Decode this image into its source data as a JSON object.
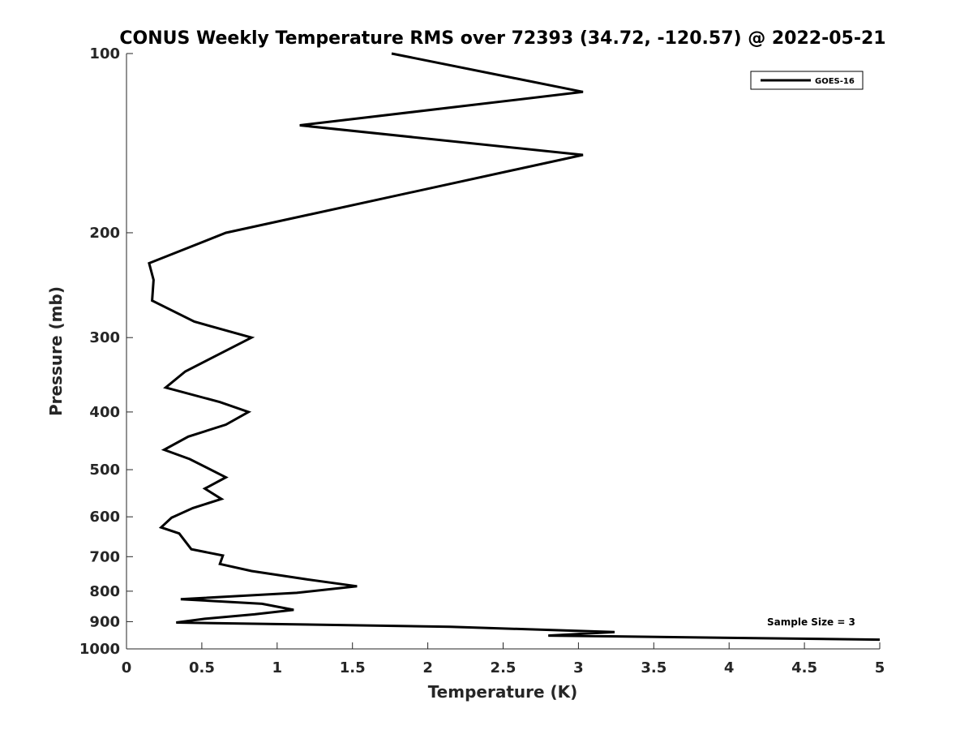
{
  "chart_data": {
    "type": "line",
    "title": "CONUS Weekly Temperature RMS over 72393 (34.72, -120.57) @ 2022-05-21",
    "xlabel": "Temperature (K)",
    "ylabel": "Pressure (mb)",
    "xlim": [
      0,
      5
    ],
    "ylim": [
      100,
      1000
    ],
    "y_scale": "log",
    "y_reversed": true,
    "x_ticks": [
      "0",
      "0.5",
      "1",
      "1.5",
      "2",
      "2.5",
      "3",
      "3.5",
      "4",
      "4.5",
      "5"
    ],
    "y_ticks": [
      "100",
      "200",
      "300",
      "400",
      "500",
      "600",
      "700",
      "800",
      "900",
      "1000"
    ],
    "grid": false,
    "legend_position": "top-right",
    "annotation": "Sample Size = 3",
    "series": [
      {
        "name": "GOES-16",
        "color": "#000000",
        "x": [
          1.76,
          3.03,
          1.15,
          3.03,
          0.66,
          0.15,
          0.18,
          0.17,
          0.45,
          0.83,
          0.39,
          0.26,
          0.62,
          0.81,
          0.66,
          0.41,
          0.25,
          0.42,
          0.66,
          0.52,
          0.63,
          0.44,
          0.3,
          0.23,
          0.35,
          0.43,
          0.64,
          0.62,
          0.83,
          1.21,
          1.53,
          1.13,
          0.36,
          0.9,
          1.11,
          0.85,
          0.52,
          0.33,
          2.15,
          3.24,
          2.8,
          5.0
        ],
        "y": [
          100,
          116,
          132,
          148,
          200,
          225,
          240,
          260,
          282,
          300,
          342,
          364,
          385,
          400,
          420,
          440,
          463,
          480,
          515,
          538,
          560,
          580,
          602,
          625,
          640,
          680,
          697,
          720,
          740,
          765,
          785,
          805,
          825,
          840,
          860,
          875,
          890,
          903,
          918,
          937,
          950,
          965
        ]
      }
    ]
  }
}
